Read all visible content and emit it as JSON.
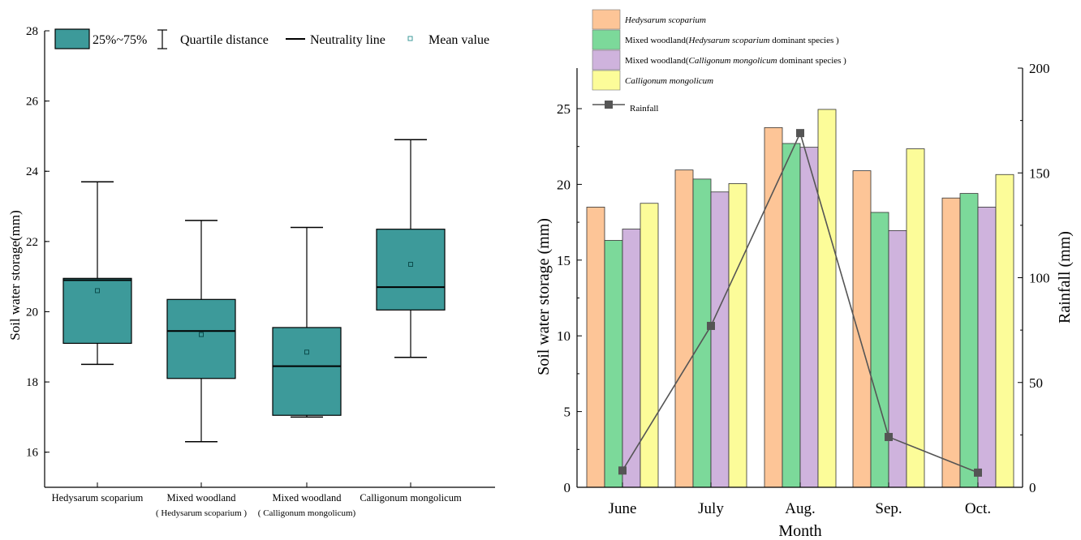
{
  "colors": {
    "box_fill": "#3d9a9a",
    "bar_hs": "#fdc597",
    "bar_mh": "#7cd99a",
    "bar_mc": "#cfb3dd",
    "bar_cm": "#fcfc99",
    "rainfall": "#555555"
  },
  "chart_data": [
    {
      "type": "box",
      "ylabel": "Soil water storage(mm)",
      "ylim": [
        15,
        28
      ],
      "yticks": [
        16,
        18,
        20,
        22,
        24,
        26,
        28
      ],
      "grid": false,
      "legend": {
        "placement": "top",
        "items": {
          "box": "25%~75%",
          "whisker": "Quartile distance",
          "median": "Neutrality line",
          "mean": "Mean value"
        }
      },
      "categories": [
        {
          "line1": "Hedysarum scoparium",
          "line2": ""
        },
        {
          "line1": "Mixed woodland",
          "line2": "( Hedysarum scoparium )"
        },
        {
          "line1": "Mixed woodland",
          "line2": "( Calligonum mongolicum)"
        },
        {
          "line1": "Calligonum mongolicum",
          "line2": ""
        }
      ],
      "boxes": [
        {
          "min": 18.5,
          "q1": 19.1,
          "median": 20.9,
          "q3": 20.95,
          "max": 23.7,
          "mean": 20.6
        },
        {
          "min": 16.3,
          "q1": 18.1,
          "median": 19.45,
          "q3": 20.35,
          "max": 22.6,
          "mean": 19.35
        },
        {
          "min": 17.0,
          "q1": 17.05,
          "median": 18.45,
          "q3": 19.55,
          "max": 22.4,
          "mean": 18.85
        },
        {
          "min": 18.7,
          "q1": 20.05,
          "median": 20.7,
          "q3": 22.35,
          "max": 24.9,
          "mean": 21.35
        }
      ]
    },
    {
      "type": "bar+line",
      "xlabel": "Month",
      "ylabel": "Soil water storage (mm)",
      "y2label": "Rainfall (mm)",
      "ylim": [
        0,
        27.5
      ],
      "yticks": [
        0,
        5,
        10,
        15,
        20,
        25
      ],
      "y2lim": [
        0,
        200
      ],
      "y2ticks": [
        0,
        50,
        100,
        150,
        200
      ],
      "grid": false,
      "legend_placement": "top-left",
      "categories": [
        "June",
        "July",
        "Aug.",
        "Sep.",
        "Oct."
      ],
      "series": [
        {
          "name": "Hedysarum scoparium",
          "legend": {
            "pre": "",
            "italic": "Hedysarum scoparium",
            "post": ""
          },
          "values": [
            18.5,
            20.95,
            23.75,
            20.9,
            19.1
          ]
        },
        {
          "name": "Mixed woodland(Hedysarum scoparium dominant species )",
          "legend": {
            "pre": "Mixed woodland(",
            "italic": "Hedysarum scoparium",
            "post": " dominant species )"
          },
          "values": [
            16.3,
            20.35,
            22.7,
            18.15,
            19.4
          ]
        },
        {
          "name": "Mixed woodland(Calligonum mongolicum dominant species )",
          "legend": {
            "pre": "Mixed woodland(",
            "italic": "Calligonum mongolicum",
            "post": " dominant species )"
          },
          "values": [
            17.05,
            19.5,
            22.45,
            16.95,
            18.5
          ]
        },
        {
          "name": "Calligonum mongolicum",
          "legend": {
            "pre": "",
            "italic": "Calligonum mongolicum",
            "post": ""
          },
          "values": [
            18.75,
            20.05,
            24.95,
            22.35,
            20.65
          ]
        }
      ],
      "line": {
        "name": "Rainfall",
        "axis": "right",
        "values": [
          8,
          77,
          169,
          24,
          7
        ]
      }
    }
  ]
}
